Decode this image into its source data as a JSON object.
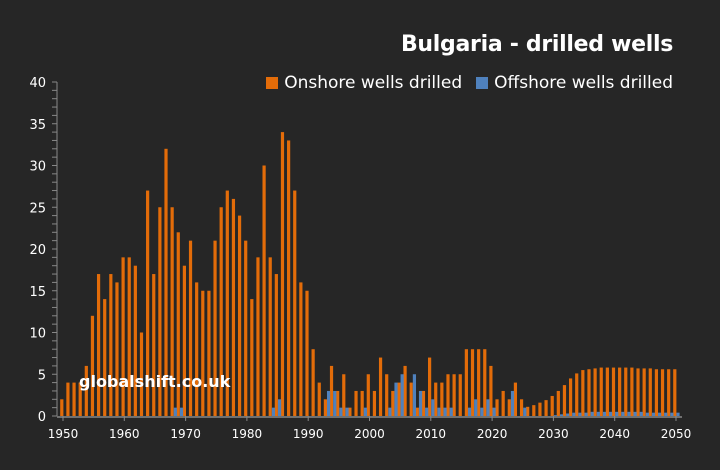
{
  "chart_data": {
    "type": "bar",
    "title": "Bulgaria - drilled wells",
    "xlabel": "",
    "ylabel": "",
    "ylim": [
      0,
      40
    ],
    "yticks": [
      0,
      5,
      10,
      15,
      20,
      25,
      30,
      35,
      40
    ],
    "xticks": [
      1950,
      1960,
      1970,
      1980,
      1990,
      2000,
      2010,
      2020,
      2030,
      2040,
      2050
    ],
    "legend_position": "top-right",
    "grid": false,
    "x_start": 1950,
    "x_end": 2050,
    "series": [
      {
        "name": "Onshore wells drilled",
        "color": "#e36c09",
        "values": [
          2,
          4,
          4,
          4,
          6,
          12,
          17,
          14,
          17,
          16,
          19,
          19,
          18,
          10,
          27,
          17,
          25,
          32,
          25,
          22,
          18,
          21,
          16,
          15,
          15,
          21,
          25,
          27,
          26,
          24,
          21,
          14,
          19,
          30,
          19,
          17,
          34,
          33,
          27,
          16,
          15,
          8,
          4,
          2,
          6,
          3,
          5,
          1,
          3,
          3,
          5,
          3,
          7,
          5,
          3,
          4,
          6,
          4,
          1,
          3,
          7,
          4,
          4,
          5,
          5,
          5,
          8,
          8,
          8,
          8,
          6,
          2,
          3,
          2,
          4,
          2,
          1.1,
          1.3,
          1.6,
          1.9,
          2.4,
          3.0,
          3.7,
          4.5,
          5.1,
          5.5,
          5.6,
          5.7,
          5.8,
          5.8,
          5.8,
          5.8,
          5.8,
          5.8,
          5.7,
          5.7,
          5.7,
          5.6,
          5.6,
          5.6,
          5.6
        ]
      },
      {
        "name": "Offshore wells drilled",
        "color": "#4f81bd",
        "values": [
          0,
          0,
          0,
          0,
          0,
          0,
          0,
          0,
          0,
          0,
          0,
          0,
          0,
          0,
          0,
          0,
          0,
          0,
          1,
          1,
          0,
          0,
          0,
          0,
          0,
          0,
          0,
          0,
          0,
          0,
          0,
          0,
          0,
          0,
          1,
          2,
          0,
          0,
          0,
          0,
          0,
          0,
          0,
          3,
          3,
          1,
          1,
          0,
          0,
          1,
          0,
          0,
          0,
          1,
          4,
          5,
          0,
          5,
          3,
          1,
          2,
          1,
          1,
          1,
          0,
          0,
          1,
          2,
          1,
          2,
          1,
          0,
          0,
          3,
          0,
          1,
          0,
          0,
          0,
          0,
          0.1,
          0.2,
          0.3,
          0.4,
          0.4,
          0.4,
          0.5,
          0.5,
          0.5,
          0.5,
          0.5,
          0.5,
          0.5,
          0.5,
          0.5,
          0.4,
          0.4,
          0.4,
          0.4,
          0.4,
          0.4
        ]
      }
    ]
  },
  "watermark": "globalshift.co.uk"
}
